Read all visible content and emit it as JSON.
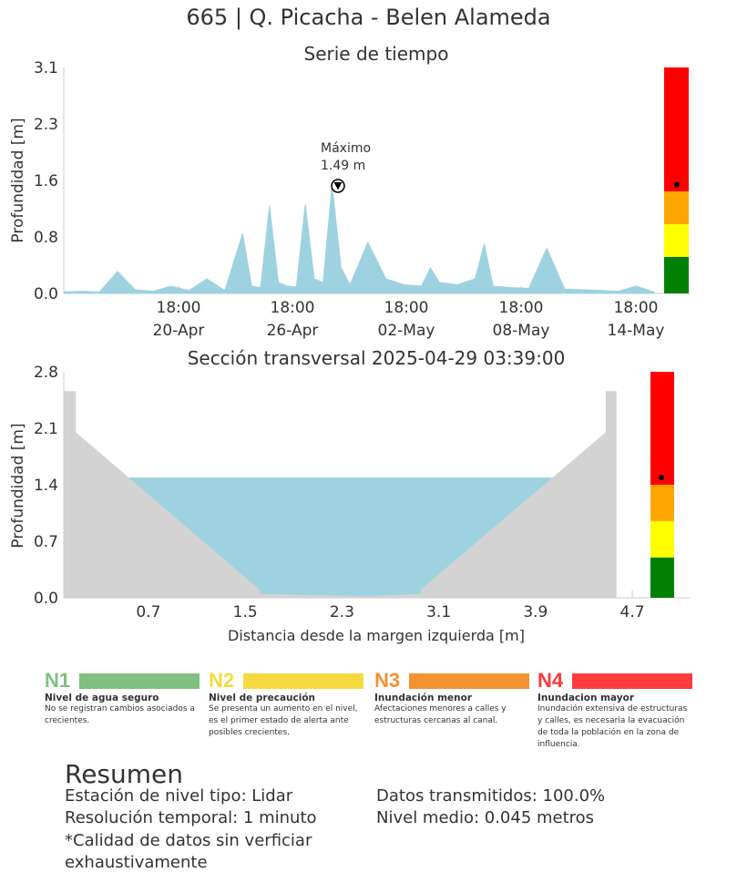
{
  "title": "665 | Q. Picacha - Belen Alameda",
  "colors": {
    "n1": "#80C080",
    "n2": "#F5DA3F",
    "n3": "#F39233",
    "n4": "#FF3B3B",
    "water": "#9ED2E1",
    "ground": "#D3D3D3",
    "green": "#008000",
    "yellow": "#FFFF00",
    "orange": "#FFA500",
    "red": "#FF0000"
  },
  "chart_data": [
    {
      "type": "area",
      "title": "Serie de tiempo",
      "ylabel": "Profundidad [m]",
      "ylim": [
        0,
        3.1
      ],
      "yticks": [
        "0.0",
        "0.8",
        "1.6",
        "2.3",
        "3.1"
      ],
      "xticks": [
        {
          "l1": "18:00",
          "l2": "20-Apr"
        },
        {
          "l1": "18:00",
          "l2": "26-Apr"
        },
        {
          "l1": "18:00",
          "l2": "02-May"
        },
        {
          "l1": "18:00",
          "l2": "08-May"
        },
        {
          "l1": "18:00",
          "l2": "14-May"
        }
      ],
      "x_days": [
        0,
        1,
        2,
        3,
        4,
        5,
        6,
        7,
        8,
        9,
        10,
        10.5,
        11,
        11.5,
        12,
        12.5,
        13,
        13.5,
        14,
        14.5,
        15,
        15.5,
        16,
        17,
        18,
        19,
        20,
        20.5,
        21,
        22,
        23,
        23.5,
        24,
        25,
        26,
        27,
        28,
        29,
        30,
        31,
        32,
        33
      ],
      "y": [
        0.02,
        0.03,
        0.02,
        0.3,
        0.05,
        0.03,
        0.1,
        0.04,
        0.2,
        0.04,
        0.82,
        0.1,
        0.08,
        1.2,
        0.15,
        0.1,
        0.09,
        1.22,
        0.2,
        0.15,
        1.49,
        0.35,
        0.12,
        0.7,
        0.2,
        0.12,
        0.1,
        0.35,
        0.15,
        0.12,
        0.2,
        0.68,
        0.1,
        0.08,
        0.07,
        0.62,
        0.06,
        0.05,
        0.04,
        0.03,
        0.1,
        0.02
      ],
      "annotation": {
        "label": "Máximo",
        "value": "1.49 m"
      },
      "current_level": 1.49,
      "alert_thresholds": [
        0,
        0.5,
        0.95,
        1.4,
        3.1
      ]
    },
    {
      "type": "area",
      "title": "Sección transversal 2025-04-29 03:39:00",
      "xlabel": "Distancia desde la margen izquierda [m]",
      "ylabel": "Profundidad [m]",
      "ylim": [
        0,
        2.8
      ],
      "xlim": [
        0,
        4.82
      ],
      "yticks": [
        "0.0",
        "0.7",
        "1.4",
        "2.1",
        "2.8"
      ],
      "xticks": [
        "0.7",
        "1.5",
        "2.3",
        "3.1",
        "3.9",
        "4.7"
      ],
      "profile_x": [
        0,
        0.1,
        0.1,
        1.62,
        1.62,
        2.5,
        2.95,
        2.95,
        4.48,
        4.48,
        4.57,
        4.57
      ],
      "profile_y": [
        2.56,
        2.56,
        2.05,
        0.1,
        0.05,
        0.02,
        0.05,
        0.1,
        2.05,
        2.56,
        2.56,
        0
      ],
      "water_level": 1.49,
      "current_level": 1.49,
      "alert_thresholds": [
        0,
        0.5,
        0.95,
        1.4,
        2.8
      ]
    }
  ],
  "levels": [
    {
      "code": "N1",
      "name": "Nivel de agua seguro",
      "desc": "No se registran cambios asociados a crecientes.",
      "color": "#80C080"
    },
    {
      "code": "N2",
      "name": "Nivel de precaución",
      "desc": "Se presenta un aumento en el nivel, es el primer estado de alerta ante posibles crecientes.",
      "color": "#F5DA3F"
    },
    {
      "code": "N3",
      "name": "Inundación menor",
      "desc": "Afectaciones menores a calles y estructuras cercanas al canal.",
      "color": "#F39233"
    },
    {
      "code": "N4",
      "name": "Inundacion mayor",
      "desc": "Inundación extensiva de estructuras y calles, es necesaria la evacuación de toda la población en la zona de influencia.",
      "color": "#FF3B3B"
    }
  ],
  "summary": {
    "title": "Resumen",
    "station": "Estación de nivel tipo: Lidar",
    "resolution": "Resolución temporal: 1 minuto",
    "quality": "*Calidad de datos sin verficiar exhaustivamente",
    "transmitted": "Datos transmitidos: 100.0%",
    "mean_level": "Nivel medio: 0.045 metros"
  }
}
